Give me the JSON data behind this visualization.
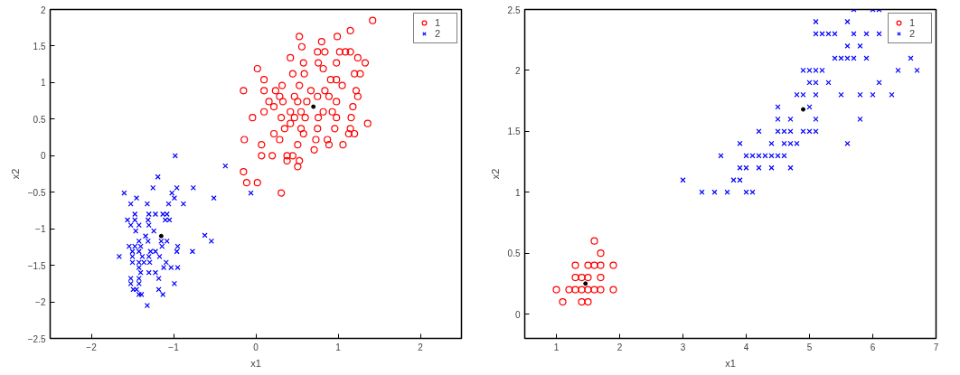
{
  "chart_data": [
    {
      "type": "scatter",
      "xlabel": "x1",
      "ylabel": "x2",
      "xlim": [
        -2.5,
        2.5
      ],
      "ylim": [
        -2.5,
        2
      ],
      "xticks": [
        {
          "value": -2,
          "label": "−2"
        },
        {
          "value": -1,
          "label": "−1"
        },
        0,
        1,
        2
      ],
      "yticks": [
        {
          "value": -2.5,
          "label": "−2.5"
        },
        {
          "value": -2,
          "label": "−2"
        },
        {
          "value": -1.5,
          "label": "−1.5"
        },
        {
          "value": -1,
          "label": "−1"
        },
        {
          "value": -0.5,
          "label": "−0.5"
        },
        0,
        0.5,
        1,
        1.5,
        2
      ],
      "grid": false,
      "legend": "top right",
      "series": [
        {
          "name": "1",
          "color": "#ff0000",
          "marker": "circle",
          "x": [
            1.42,
            1.15,
            0.53,
            0.99,
            0.8,
            0.56,
            0.42,
            0.75,
            0.84,
            1.02,
            1.09,
            1.15,
            1.24,
            1.33,
            0.58,
            0.76,
            0.98,
            0.02,
            0.82,
            0.45,
            0.59,
            1.2,
            1.27,
            0.1,
            0.91,
            0.98,
            0.32,
            0.53,
            1.05,
            -0.15,
            0.1,
            0.24,
            0.67,
            0.84,
            1.22,
            0.29,
            0.47,
            0.75,
            0.89,
            1.24,
            0.16,
            0.33,
            0.51,
            0.62,
            0.98,
            1.18,
            0.22,
            0.42,
            0.55,
            0.82,
            0.93,
            0.1,
            -0.04,
            0.31,
            0.47,
            0.6,
            0.76,
            0.98,
            1.16,
            0.42,
            1.36,
            0.35,
            0.55,
            0.75,
            0.96,
            1.15,
            0.22,
            0.58,
            1.13,
            1.2,
            -0.14,
            0.29,
            0.73,
            0.87,
            0.07,
            0.51,
            0.89,
            1.06,
            0.71,
            0.07,
            0.2,
            0.38,
            0.45,
            0.38,
            0.53,
            0.51,
            -0.15,
            -0.11,
            0.02,
            0.31
          ],
          "values": [
            1.85,
            1.71,
            1.63,
            1.63,
            1.56,
            1.49,
            1.34,
            1.42,
            1.42,
            1.42,
            1.42,
            1.42,
            1.34,
            1.27,
            1.27,
            1.27,
            1.27,
            1.19,
            1.19,
            1.12,
            1.12,
            1.12,
            1.12,
            1.04,
            1.04,
            1.04,
            0.96,
            0.96,
            0.96,
            0.89,
            0.89,
            0.89,
            0.89,
            0.89,
            0.89,
            0.81,
            0.81,
            0.81,
            0.81,
            0.81,
            0.74,
            0.74,
            0.74,
            0.74,
            0.74,
            0.67,
            0.67,
            0.6,
            0.6,
            0.6,
            0.6,
            0.6,
            0.52,
            0.52,
            0.52,
            0.52,
            0.52,
            0.52,
            0.52,
            0.44,
            0.44,
            0.37,
            0.37,
            0.37,
            0.37,
            0.37,
            0.3,
            0.3,
            0.3,
            0.3,
            0.22,
            0.22,
            0.22,
            0.22,
            0.15,
            0.15,
            0.15,
            0.15,
            0.08,
            0.0,
            0.0,
            0.0,
            0.0,
            -0.07,
            -0.07,
            -0.15,
            -0.22,
            -0.37,
            -0.37,
            -0.51
          ]
        },
        {
          "name": "2",
          "color": "#0000ff",
          "marker": "cross",
          "x": [
            -0.98,
            -0.37,
            -1.19,
            -1.25,
            -0.96,
            -0.76,
            -1.6,
            -1.02,
            -0.06,
            -1.45,
            -0.99,
            -0.51,
            -1.52,
            -1.32,
            -1.06,
            -0.88,
            -1.47,
            -1.3,
            -1.22,
            -1.13,
            -1.08,
            -1.56,
            -1.47,
            -1.31,
            -1.1,
            -1.05,
            -1.52,
            -1.42,
            -1.3,
            -1.46,
            -1.24,
            -0.62,
            -1.34,
            -1.42,
            -1.31,
            -1.15,
            -1.08,
            -0.54,
            -1.54,
            -1.47,
            -1.4,
            -1.14,
            -0.95,
            -1.66,
            -1.5,
            -1.38,
            -1.3,
            -1.17,
            -1.5,
            -1.42,
            -1.28,
            -1.22,
            -0.96,
            -0.77,
            -1.5,
            -1.42,
            -1.36,
            -1.29,
            -1.09,
            -1.42,
            -1.12,
            -1.03,
            -0.95,
            -1.4,
            -1.3,
            -1.22,
            -1.52,
            -1.42,
            -1.18,
            -1.52,
            -1.42,
            -0.99,
            -1.49,
            -1.45,
            -1.18,
            -1.42,
            -1.39,
            -1.13,
            -1.32
          ],
          "values": [
            0.0,
            -0.14,
            -0.29,
            -0.44,
            -0.44,
            -0.44,
            -0.51,
            -0.51,
            -0.51,
            -0.58,
            -0.58,
            -0.58,
            -0.66,
            -0.66,
            -0.66,
            -0.66,
            -0.8,
            -0.8,
            -0.8,
            -0.8,
            -0.8,
            -0.88,
            -0.88,
            -0.88,
            -0.88,
            -0.88,
            -0.95,
            -0.95,
            -0.95,
            -1.03,
            -1.03,
            -1.09,
            -1.1,
            -1.17,
            -1.17,
            -1.17,
            -1.17,
            -1.17,
            -1.24,
            -1.24,
            -1.24,
            -1.24,
            -1.24,
            -1.38,
            -1.38,
            -1.38,
            -1.38,
            -1.38,
            -1.31,
            -1.31,
            -1.31,
            -1.31,
            -1.31,
            -1.31,
            -1.46,
            -1.46,
            -1.46,
            -1.46,
            -1.46,
            -1.53,
            -1.53,
            -1.53,
            -1.53,
            -1.6,
            -1.6,
            -1.6,
            -1.68,
            -1.68,
            -1.68,
            -1.75,
            -1.75,
            -1.75,
            -1.83,
            -1.83,
            -1.83,
            -1.9,
            -1.9,
            -1.9,
            -2.05
          ]
        },
        {
          "type": "scatter",
          "color": "#000000",
          "marker": "circle",
          "x": [
            0.7,
            -1.15
          ],
          "values": [
            0.67,
            -1.1
          ]
        }
      ]
    },
    {
      "type": "scatter",
      "xlabel": "x1",
      "ylabel": "x2",
      "xlim": [
        0.5,
        7
      ],
      "ylim": [
        -0.2,
        2.5
      ],
      "xticks": [
        1,
        2,
        3,
        4,
        5,
        6,
        7
      ],
      "yticks": [
        0,
        0.5,
        1,
        1.5,
        2,
        2.5
      ],
      "grid": false,
      "legend": "top right",
      "series": [
        {
          "name": "1",
          "color": "#ff0000",
          "marker": "circle",
          "x": [
            1.6,
            1.7,
            1.3,
            1.5,
            1.6,
            1.7,
            1.9,
            1.3,
            1.4,
            1.5,
            1.7,
            1.0,
            1.2,
            1.3,
            1.4,
            1.5,
            1.6,
            1.7,
            1.9,
            1.1,
            1.4,
            1.5
          ],
          "values": [
            0.6,
            0.5,
            0.4,
            0.4,
            0.4,
            0.4,
            0.4,
            0.3,
            0.3,
            0.3,
            0.3,
            0.2,
            0.2,
            0.2,
            0.2,
            0.2,
            0.2,
            0.2,
            0.2,
            0.1,
            0.1,
            0.1
          ]
        },
        {
          "name": "2",
          "color": "#0000ff",
          "marker": "cross",
          "x": [
            5.7,
            6.0,
            6.1,
            5.1,
            5.6,
            5.1,
            5.2,
            5.3,
            5.4,
            5.7,
            5.9,
            6.1,
            5.6,
            5.8,
            5.4,
            5.5,
            5.6,
            5.7,
            5.9,
            6.6,
            4.9,
            5.0,
            5.1,
            5.2,
            6.4,
            6.7,
            5.0,
            5.1,
            5.3,
            6.1,
            4.8,
            4.9,
            5.1,
            5.5,
            5.8,
            6.0,
            6.3,
            4.5,
            5.0,
            4.5,
            4.7,
            5.1,
            5.8,
            4.2,
            4.5,
            4.6,
            4.7,
            4.9,
            5.0,
            5.1,
            3.9,
            4.4,
            4.6,
            4.7,
            4.8,
            5.6,
            3.6,
            4.0,
            4.1,
            4.2,
            4.3,
            4.4,
            4.5,
            4.6,
            3.9,
            4.0,
            4.2,
            4.4,
            4.7,
            3.0,
            3.8,
            3.9,
            3.3,
            3.5,
            3.7,
            4.0,
            4.1
          ],
          "values": [
            2.5,
            2.5,
            2.5,
            2.4,
            2.4,
            2.3,
            2.3,
            2.3,
            2.3,
            2.3,
            2.3,
            2.3,
            2.2,
            2.2,
            2.1,
            2.1,
            2.1,
            2.1,
            2.1,
            2.1,
            2.0,
            2.0,
            2.0,
            2.0,
            2.0,
            2.0,
            1.9,
            1.9,
            1.9,
            1.9,
            1.8,
            1.8,
            1.8,
            1.8,
            1.8,
            1.8,
            1.8,
            1.7,
            1.7,
            1.6,
            1.6,
            1.6,
            1.6,
            1.5,
            1.5,
            1.5,
            1.5,
            1.5,
            1.5,
            1.5,
            1.4,
            1.4,
            1.4,
            1.4,
            1.4,
            1.4,
            1.3,
            1.3,
            1.3,
            1.3,
            1.3,
            1.3,
            1.3,
            1.3,
            1.2,
            1.2,
            1.2,
            1.2,
            1.2,
            1.1,
            1.1,
            1.1,
            1.0,
            1.0,
            1.0,
            1.0,
            1.0
          ]
        },
        {
          "type": "scatter",
          "color": "#000000",
          "marker": "circle",
          "x": [
            1.46,
            4.9
          ],
          "values": [
            0.25,
            1.68
          ]
        }
      ]
    }
  ]
}
